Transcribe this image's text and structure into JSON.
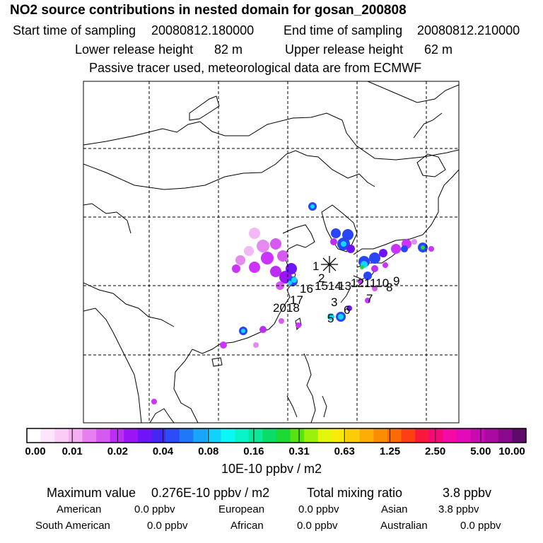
{
  "header": {
    "title": "NO2 source contributions in nested domain for gosan_200808",
    "start_label": "Start time of sampling",
    "start_value": "20080812.180000",
    "end_label": "End time of sampling",
    "end_value": "20080812.210000",
    "lower_label": "Lower release height",
    "lower_value": "82 m",
    "upper_label": "Upper release height",
    "upper_value": "62 m",
    "tracer_note": "Passive tracer used, meteorological data are from ECMWF"
  },
  "map": {
    "receptor_label": "1",
    "source_labels": [
      "2",
      "3",
      "4",
      "5",
      "6",
      "7",
      "8",
      "9",
      "10",
      "11",
      "12",
      "13",
      "14",
      "15",
      "16",
      "17",
      "18",
      "20"
    ],
    "number_glyphs": {
      "n2": "2",
      "n3": "3",
      "n6": "6",
      "n56": "5",
      "n7": "7",
      "n8": "8",
      "n9": "9",
      "n1211109": "121110",
      "n1514": "1514",
      "n13": "13",
      "n16": "16",
      "n17": "17",
      "n2018": "2018"
    }
  },
  "colorbar": {
    "colors": [
      "#ffffff",
      "#fde6fb",
      "#fbccf6",
      "#f6aef2",
      "#e87ff0",
      "#d65af1",
      "#bc2ef4",
      "#9b14f6",
      "#6e14f7",
      "#4626f5",
      "#2c4cf7",
      "#1e78f8",
      "#17a6f9",
      "#10d2fb",
      "#0bf7f5",
      "#09f3c8",
      "#0ae89a",
      "#0bdc69",
      "#1bd832",
      "#56e411",
      "#9cf00b",
      "#e3f60a",
      "#fbea09",
      "#fbcc07",
      "#fbad06",
      "#fb8d05",
      "#fb6a05",
      "#fb3f12",
      "#fa173c",
      "#f70a77",
      "#f40aa4",
      "#e30ab9",
      "#c90ab2",
      "#aa0aa2",
      "#8a0a8c",
      "#5e0a6b"
    ],
    "labels": [
      "0.00",
      "0.01",
      "0.02",
      "0.04",
      "0.08",
      "0.16",
      "0.31",
      "0.63",
      "1.25",
      "2.50",
      "5.00",
      "10.00"
    ],
    "unit": "10E-10 ppbv / m2"
  },
  "stats": {
    "max_label": "Maximum value",
    "max_value": "0.276E-10 ppbv / m2",
    "total_label": "Total mixing ratio",
    "total_value": "3.8 ppbv",
    "regions": [
      {
        "name": "American",
        "value": "0.0 ppbv"
      },
      {
        "name": "European",
        "value": "0.0 ppbv"
      },
      {
        "name": "Asian",
        "value": "3.8 ppbv"
      },
      {
        "name": "South American",
        "value": "0.0 ppbv"
      },
      {
        "name": "African",
        "value": "0.0 ppbv"
      },
      {
        "name": "Australian",
        "value": "0.0 ppbv"
      }
    ]
  },
  "palette": {
    "magenta": "#cc33ff",
    "pink": "#ef9cf7",
    "blue": "#2846f6",
    "cyan": "#10d8fa",
    "green": "#1ed93a"
  }
}
